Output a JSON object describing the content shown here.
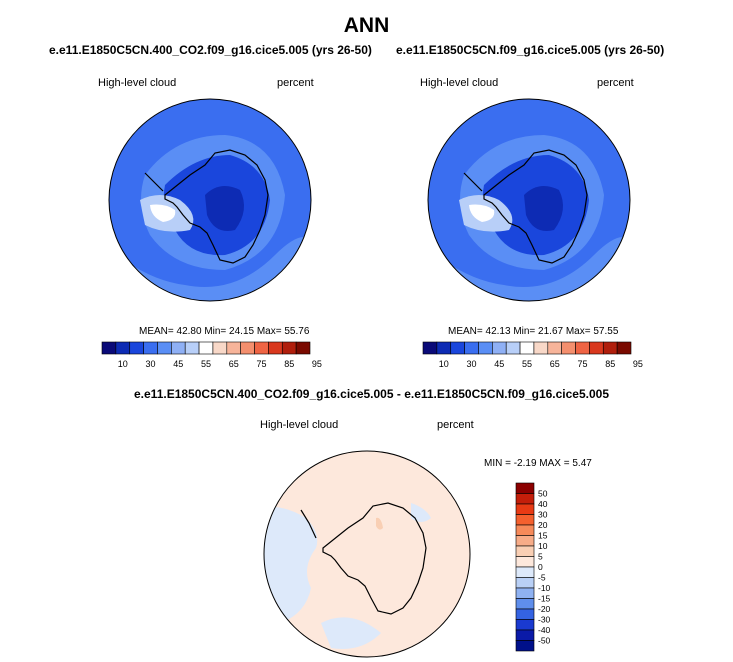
{
  "page_title": "ANN",
  "panels": [
    {
      "case": "e.e11.E1850C5CN.400_CO2.f09_g16.cice5.005 (yrs 26-50)",
      "variable": "High-level cloud",
      "units": "percent",
      "stats": "MEAN=  42.80  Min=  24.15  Max=  55.76"
    },
    {
      "case": "e.e11.E1850C5CN.f09_g16.cice5.005 (yrs 26-50)",
      "variable": "High-level cloud",
      "units": "percent",
      "stats": "MEAN=  42.13  Min=  21.67  Max=  57.55"
    },
    {
      "case": "e.e11.E1850C5CN.400_CO2.f09_g16.cice5.005 - e.e11.E1850C5CN.f09_g16.cice5.005",
      "variable": "High-level cloud",
      "units": "percent",
      "stats": "MIN =  -2.19 MAX =   5.47"
    }
  ],
  "chart_data": [
    {
      "type": "heatmap",
      "projection": "polar-stereographic-south",
      "colorbar": {
        "orientation": "horizontal",
        "labels": [
          "10",
          "30",
          "45",
          "55",
          "65",
          "75",
          "85",
          "95"
        ],
        "colors": [
          "#0a0a78",
          "#0d2bb4",
          "#1a46dc",
          "#3a6ef0",
          "#5a8ef5",
          "#8fb0f5",
          "#b8cff8",
          "#ffffff",
          "#f8d8c8",
          "#f7b49a",
          "#f48f6e",
          "#ef6444",
          "#d9381e",
          "#b01e0c",
          "#7a0a00"
        ]
      },
      "stats": {
        "mean": 42.8,
        "min": 24.15,
        "max": 55.76
      }
    },
    {
      "type": "heatmap",
      "projection": "polar-stereographic-south",
      "colorbar": {
        "orientation": "horizontal",
        "labels": [
          "10",
          "30",
          "45",
          "55",
          "65",
          "75",
          "85",
          "95"
        ],
        "colors": [
          "#0a0a78",
          "#0d2bb4",
          "#1a46dc",
          "#3a6ef0",
          "#5a8ef5",
          "#8fb0f5",
          "#b8cff8",
          "#ffffff",
          "#f8d8c8",
          "#f7b49a",
          "#f48f6e",
          "#ef6444",
          "#d9381e",
          "#b01e0c",
          "#7a0a00"
        ]
      },
      "stats": {
        "mean": 42.13,
        "min": 21.67,
        "max": 57.55
      }
    },
    {
      "type": "heatmap",
      "projection": "polar-stereographic-south",
      "colorbar": {
        "orientation": "vertical",
        "labels": [
          "50",
          "40",
          "30",
          "20",
          "15",
          "10",
          "5",
          "0",
          "-5",
          "-10",
          "-15",
          "-20",
          "-30",
          "-40",
          "-50"
        ],
        "colors": [
          "#8b0000",
          "#c41e0a",
          "#e83a14",
          "#f4602e",
          "#f68a5a",
          "#f7ac88",
          "#f9cfb4",
          "#fde8dc",
          "#dde9fa",
          "#b9d0f6",
          "#8fb2f2",
          "#5f8eec",
          "#3463e2",
          "#1a3ad0",
          "#0a1aa8",
          "#00108a"
        ]
      },
      "stats": {
        "min": -2.19,
        "max": 5.47
      }
    }
  ]
}
